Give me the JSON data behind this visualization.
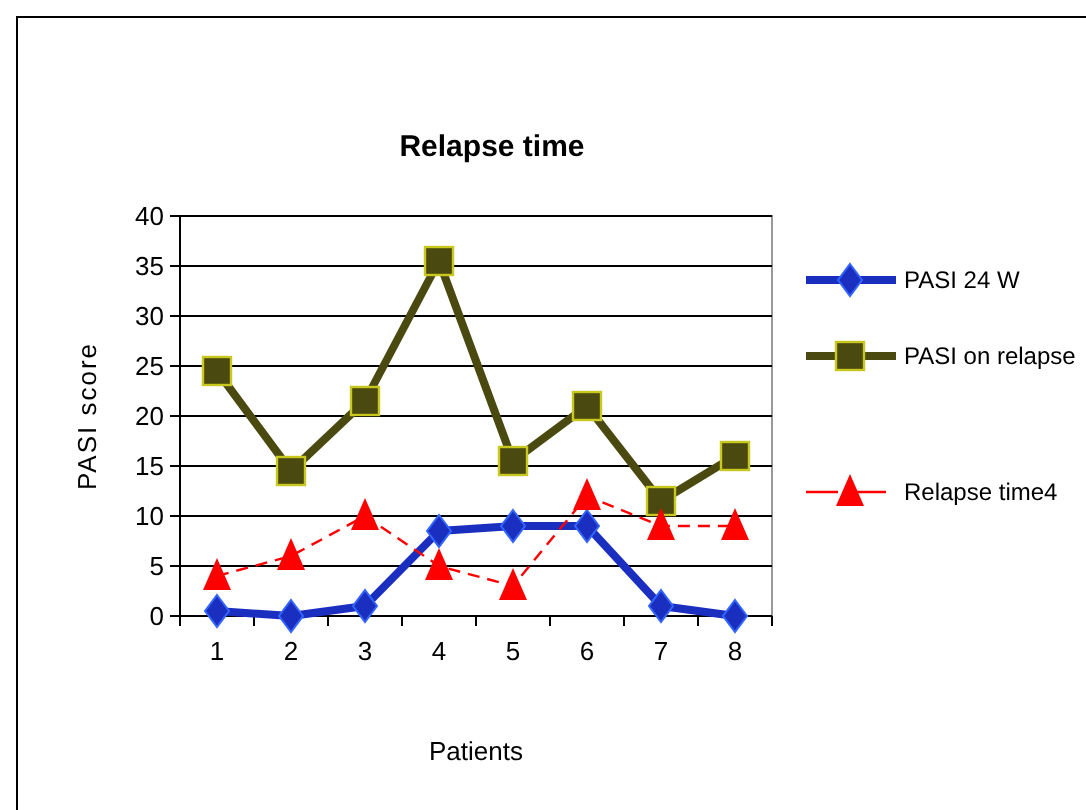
{
  "chart_data": {
    "type": "line",
    "title": "Relapse time",
    "xlabel": "Patients",
    "ylabel": "PASI score",
    "categories": [
      "1",
      "2",
      "3",
      "4",
      "5",
      "6",
      "7",
      "8"
    ],
    "series": [
      {
        "name": "PASI 24 W",
        "color": "#1a2fc0",
        "marker": "diamond",
        "line_style": "solid",
        "values": [
          0.5,
          0,
          1,
          8.5,
          9,
          9,
          1,
          0
        ]
      },
      {
        "name": "PASI on relapse",
        "color": "#4a4a10",
        "marker": "square",
        "line_style": "solid",
        "values": [
          24.5,
          14.5,
          21.5,
          35.5,
          15.5,
          21,
          11.5,
          16
        ]
      },
      {
        "name": "Relapse time4",
        "color": "#ff0000",
        "marker": "triangle",
        "line_style": "dashed",
        "values": [
          4,
          6,
          10,
          5,
          3,
          12,
          9,
          9
        ]
      }
    ],
    "ylim": [
      0,
      40
    ],
    "yticks": [
      0,
      5,
      10,
      15,
      20,
      25,
      30,
      35,
      40
    ],
    "grid": "y",
    "legend": "right"
  }
}
